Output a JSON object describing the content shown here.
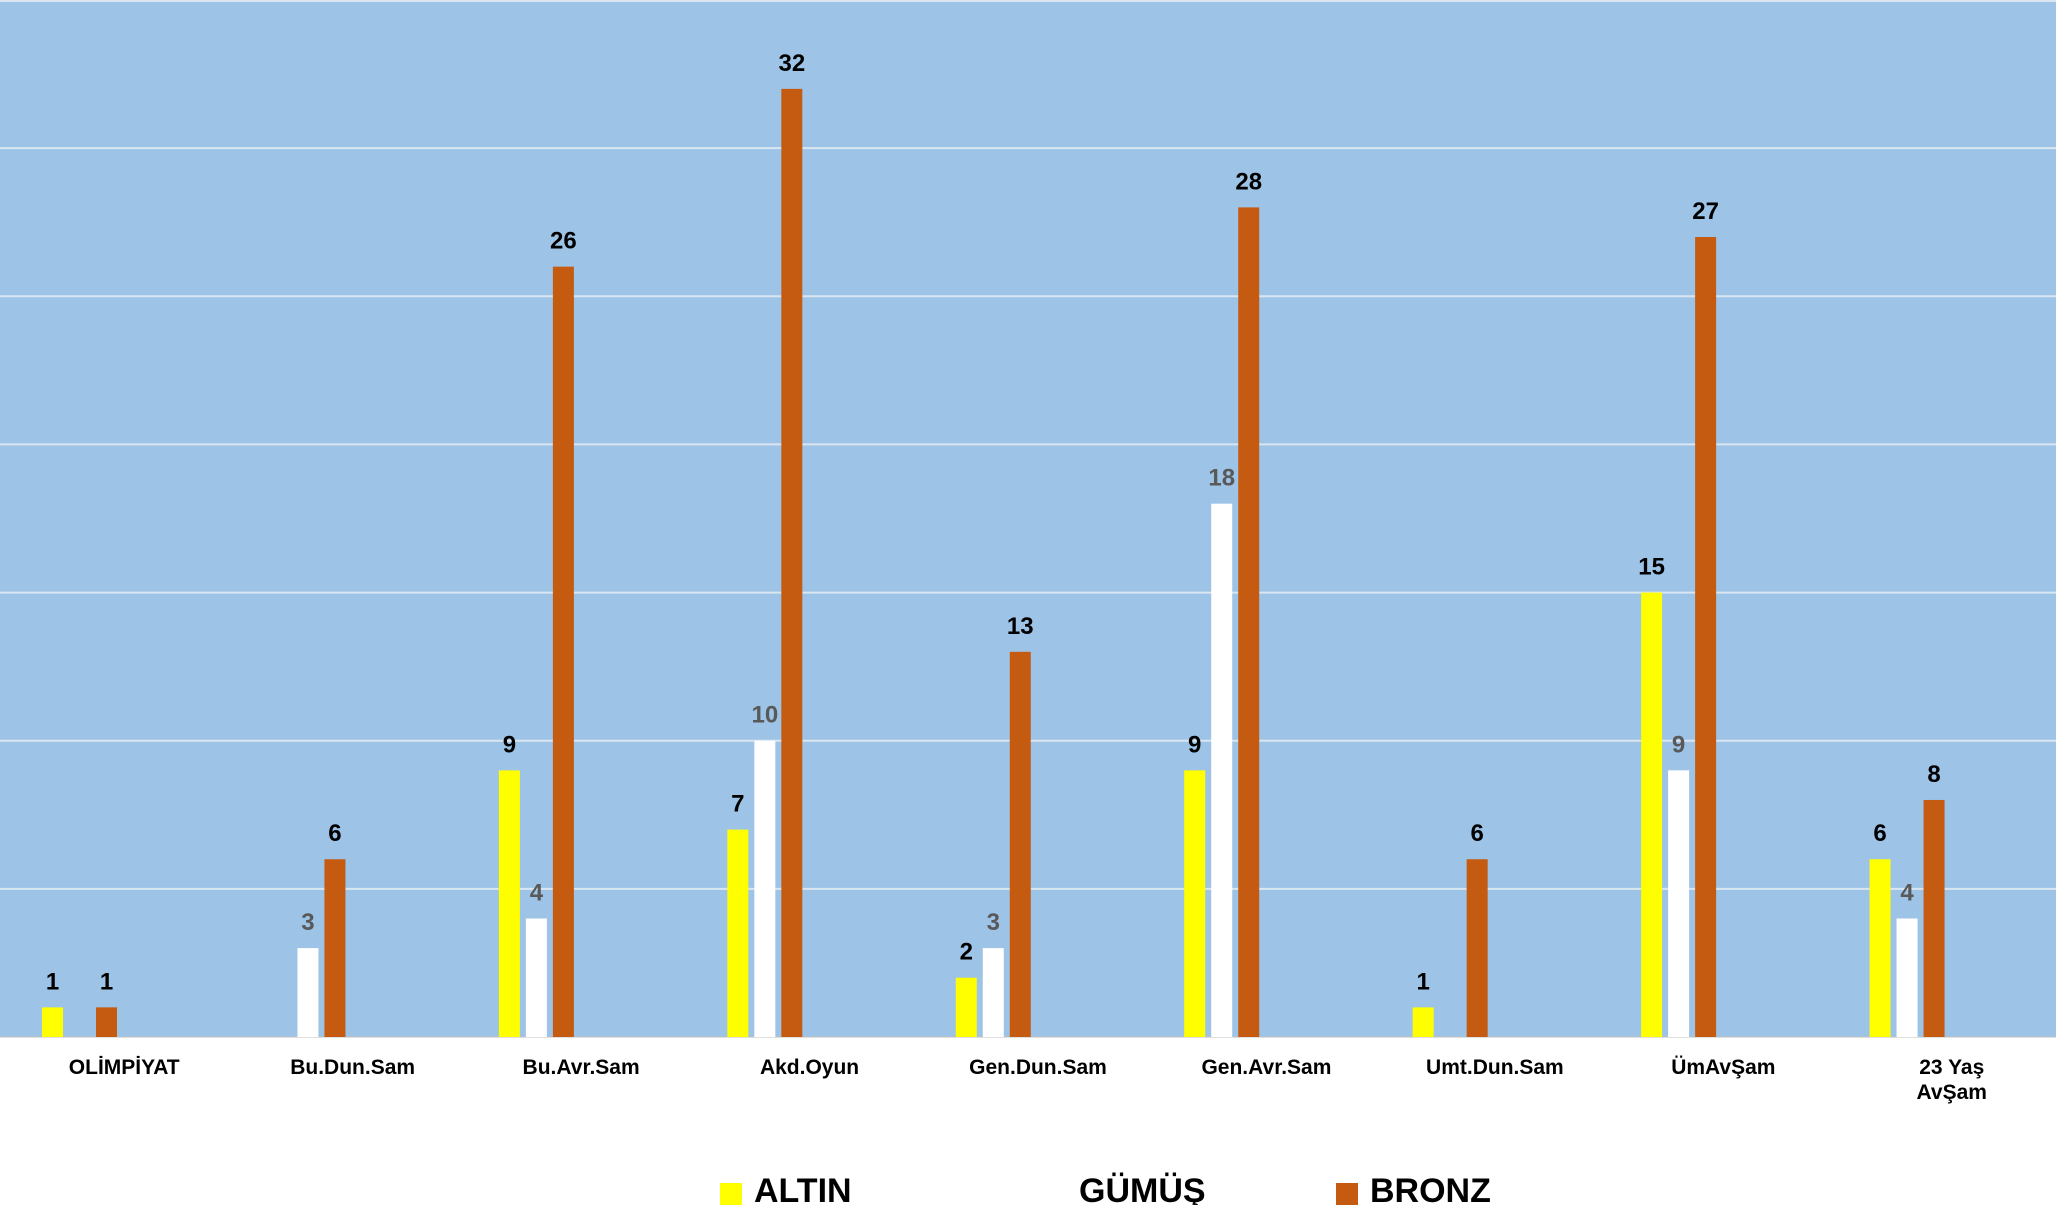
{
  "chart_data": {
    "type": "bar",
    "categories": [
      "OLİMPİYAT",
      "Bu.Dun.Sam",
      "Bu.Avr.Sam",
      "Akd.Oyun",
      "Gen.Dun.Sam",
      "Gen.Avr.Sam",
      "Umt.Dun.Sam",
      "ÜmAvŞam",
      "23 Yaş AvŞam"
    ],
    "series": [
      {
        "name": "ALTIN",
        "color": "#FFFF00",
        "values": [
          1,
          null,
          9,
          7,
          2,
          9,
          1,
          15,
          6
        ]
      },
      {
        "name": "GÜMÜŞ",
        "color": "#FFFFFF",
        "values": [
          null,
          3,
          4,
          10,
          3,
          18,
          null,
          9,
          4
        ]
      },
      {
        "name": "BRONZ",
        "color": "#C55A11",
        "values": [
          1,
          6,
          26,
          32,
          13,
          28,
          6,
          27,
          8
        ]
      }
    ],
    "ylim": [
      0,
      35
    ],
    "gridlines": [
      5,
      10,
      15,
      20,
      25,
      30,
      35
    ],
    "grid": true,
    "plot_background": "#9DC3E6",
    "gridline_color": "#D9E6F2",
    "label_colors": {
      "ALTIN": "#000000",
      "GÜMÜŞ": "#595959",
      "BRONZ": "#000000"
    },
    "legend": {
      "position": "bottom",
      "entries": [
        "ALTIN",
        "GÜMÜŞ",
        "BRONZ"
      ]
    },
    "title": "",
    "xlabel": "",
    "ylabel": ""
  }
}
